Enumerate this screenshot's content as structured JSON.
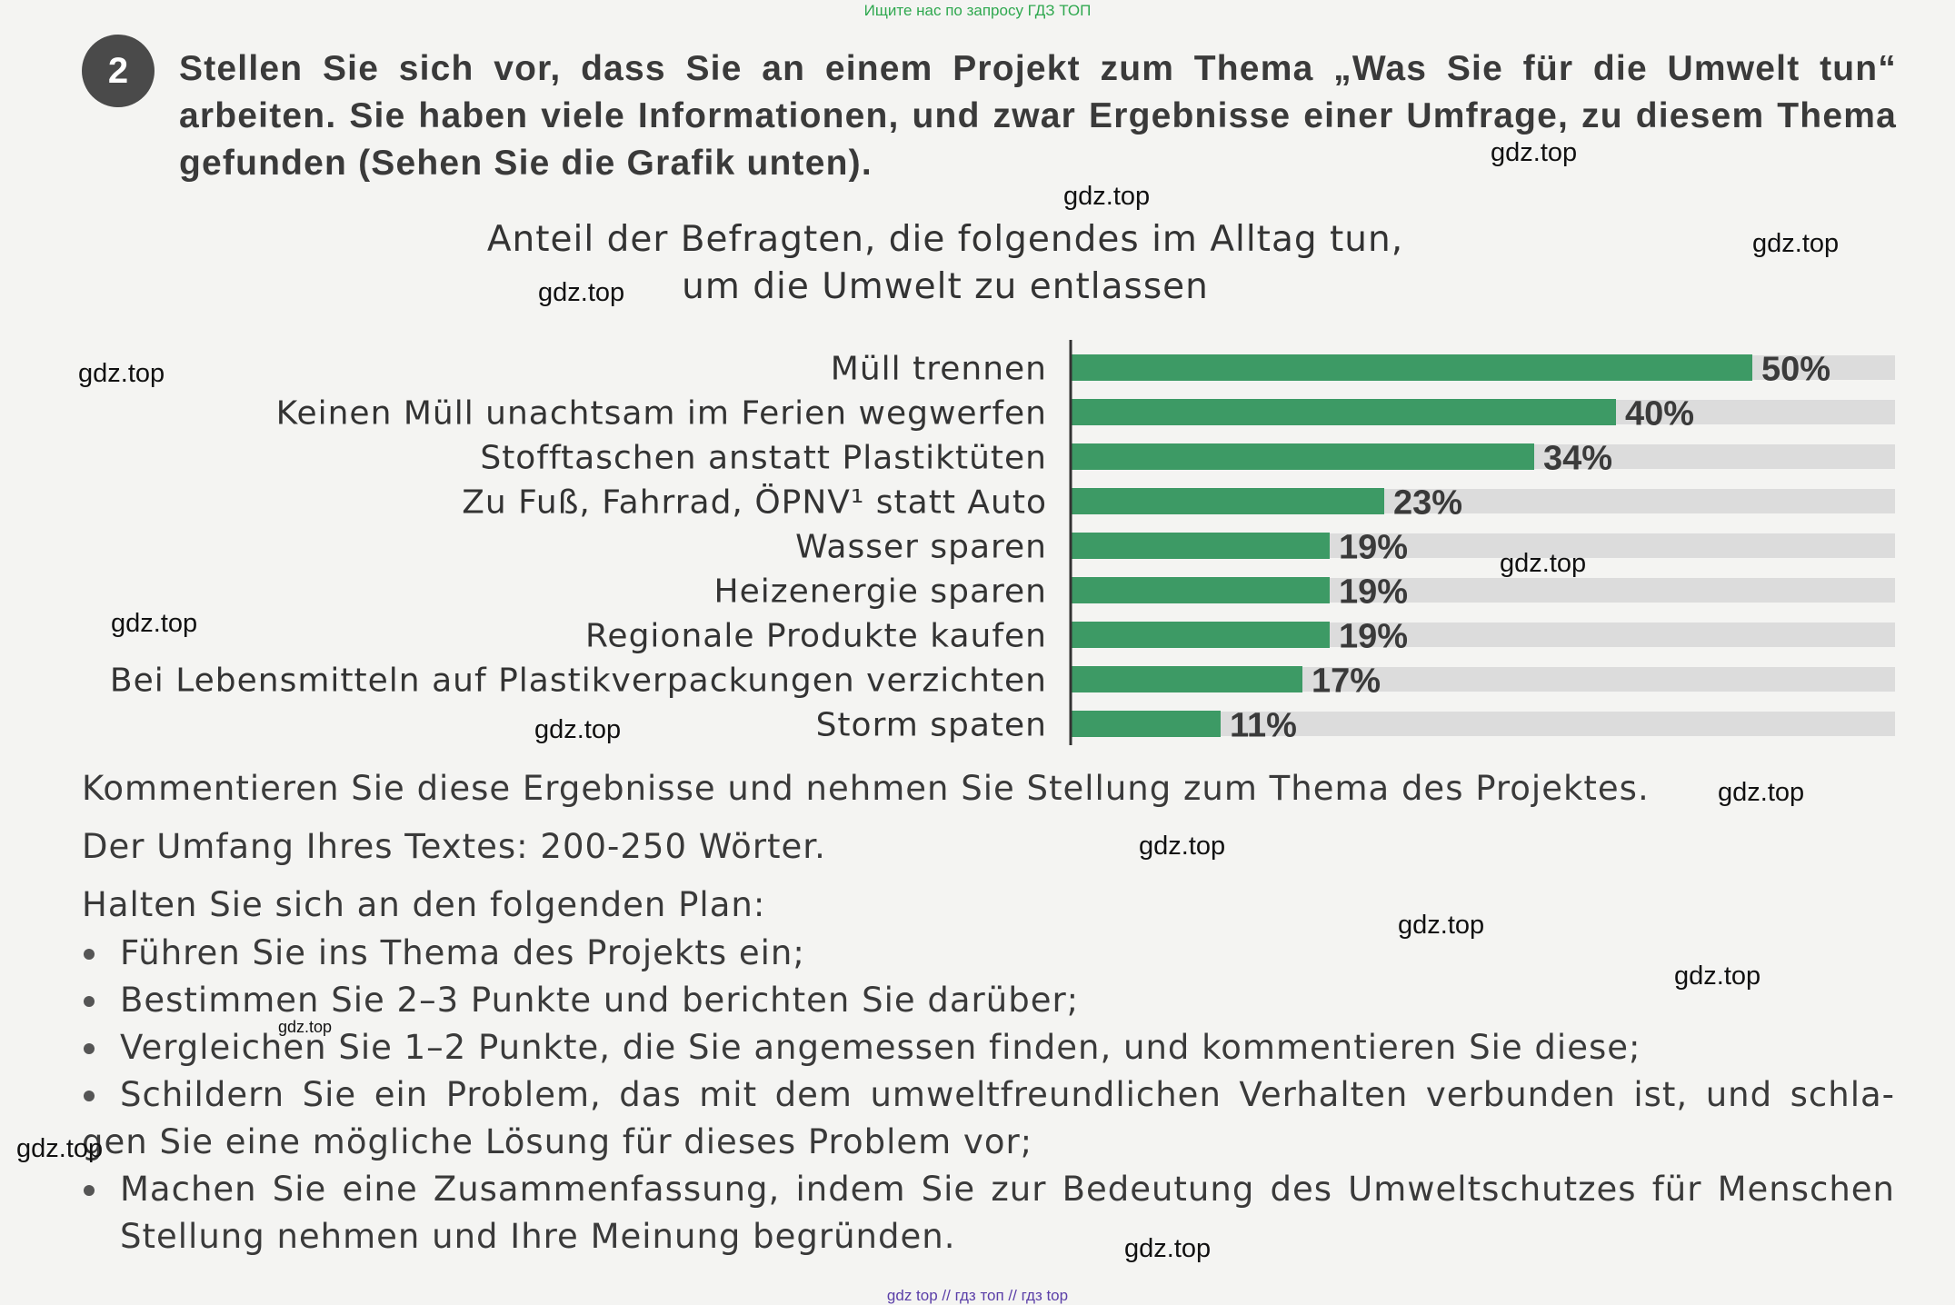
{
  "header_note": "Ищите нас по запросу ГДЗ ТОП",
  "task": {
    "number": "2",
    "text": "Stellen Sie sich vor, dass Sie an einem Projekt zum Thema „Was Sie für die Umwelt tun“ arbeiten. Sie haben viele Informationen, und zwar Ergebnisse einer Umfrage, zu diesem Thema gefunden (Sehen Sie die Grafik unten)."
  },
  "chart_data": {
    "type": "bar",
    "orientation": "horizontal",
    "title": "Anteil der Befragten, die folgendes im Alltag tun,",
    "subtitle": "um die Umwelt zu entlassen",
    "categories": [
      "Müll trennen",
      "Keinen Müll unachtsam im Ferien wegwerfen",
      "Stofftaschen anstatt Plastiktüten",
      "Zu Fuß, Fahrrad, ÖPNV¹ statt Auto",
      "Wasser sparen",
      "Heizenergie sparen",
      "Regionale Produkte kaufen",
      "Bei Lebensmitteln auf Plastikverpackungen verzichten",
      "Storm spaten"
    ],
    "values": [
      50,
      40,
      34,
      23,
      19,
      19,
      19,
      17,
      11
    ],
    "value_labels": [
      "50%",
      "40%",
      "34%",
      "23%",
      "19%",
      "19%",
      "19%",
      "17%",
      "11%"
    ],
    "xlim": [
      0,
      60
    ],
    "bar_color": "#3d9a65",
    "track_color": "#dcdcdc",
    "grid": false,
    "legend": "none"
  },
  "comment": "Kommentieren Sie diese Ergebnisse und nehmen Sie Stellung zum Thema des Projektes.",
  "length": "Der Umfang Ihres Textes: 200-250 Wörter.",
  "plan_intro": "Halten Sie sich an den folgenden Plan:",
  "plan": [
    "Führen Sie ins Thema des Projekts ein;",
    "Bestimmen Sie 2–3 Punkte und berichten Sie darüber;",
    "Vergleichen Sie 1–2 Punkte, die Sie angemessen finden, und kommentieren Sie diese;",
    "Schildern Sie ein Problem, das mit dem umweltfreundlichen Verhalten verbunden ist, und schla-",
    "Machen Sie eine Zusammenfassung, indem Sie zur Bedeutung des Umweltschutzes für Menschen"
  ],
  "plan_continuations": {
    "item4": "gen Sie eine mögliche Lösung für dieses Problem vor;",
    "item5": "Stellung nehmen und Ihre Meinung begründen."
  },
  "watermark": "gdz.top",
  "footer_note": "gdz top  //  гдз топ  //  гдз top"
}
